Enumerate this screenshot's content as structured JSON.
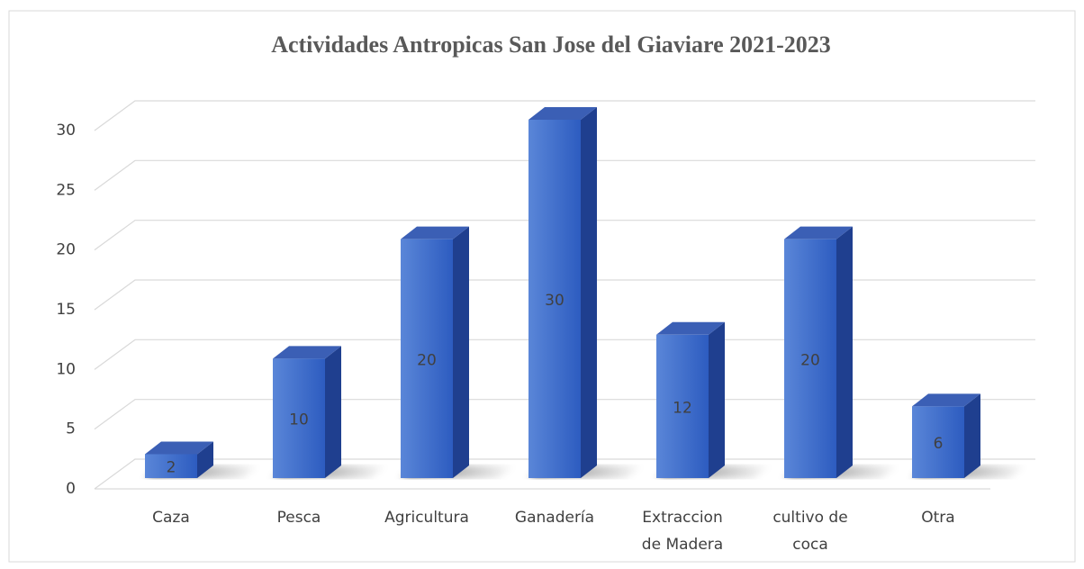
{
  "chart_data": {
    "type": "bar",
    "title": "Actividades Antropicas San Jose del Giaviare 2021-2023",
    "categories": [
      "Caza",
      "Pesca",
      "Agricultura",
      "Ganadería",
      "Extraccion de Madera",
      "cultivo de coca",
      "Otra"
    ],
    "values": [
      2,
      10,
      20,
      30,
      12,
      20,
      6
    ],
    "color": "#3a6bcc",
    "ylim": [
      0,
      30
    ],
    "yticks": [
      0,
      5,
      10,
      15,
      20,
      25,
      30
    ],
    "grid": true
  }
}
